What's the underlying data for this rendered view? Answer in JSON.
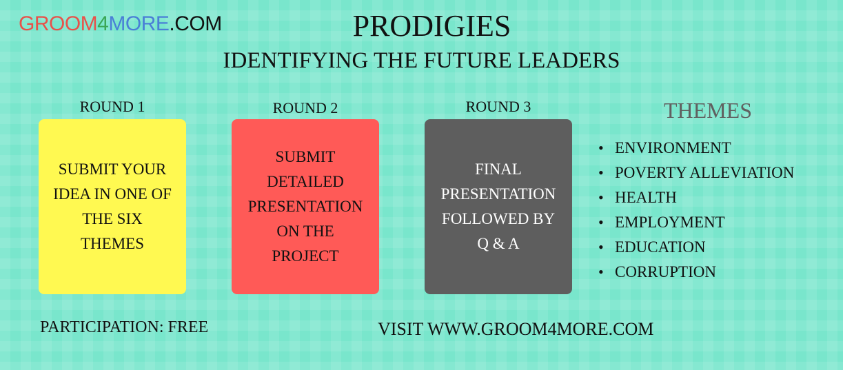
{
  "logo": {
    "part1": "GROOM",
    "part2": "4",
    "part3": "MORE",
    "part4": ".COM"
  },
  "header": {
    "title": "PRODIGIES",
    "subtitle": "IDENTIFYING THE FUTURE LEADERS"
  },
  "rounds": [
    {
      "label": "ROUND 1",
      "lines": [
        "SUBMIT YOUR",
        "IDEA IN ONE OF",
        "THE SIX",
        "THEMES"
      ],
      "color": "#fff951"
    },
    {
      "label": "ROUND 2",
      "lines": [
        "SUBMIT",
        "DETAILED",
        "PRESENTATION",
        "ON THE",
        "PROJECT"
      ],
      "color": "#ff5a57"
    },
    {
      "label": "ROUND 3",
      "lines": [
        "FINAL",
        "PRESENTATION",
        "FOLLOWED BY",
        "Q & A"
      ],
      "color": "#5e5e5e"
    }
  ],
  "themes": {
    "heading": "THEMES",
    "items": [
      "ENVIRONMENT",
      "POVERTY ALLEVIATION",
      "HEALTH",
      "EMPLOYMENT",
      "EDUCATION",
      "CORRUPTION"
    ]
  },
  "footer": {
    "participation": "PARTICIPATION: FREE",
    "visit": "VISIT WWW.GROOM4MORE.COM"
  }
}
